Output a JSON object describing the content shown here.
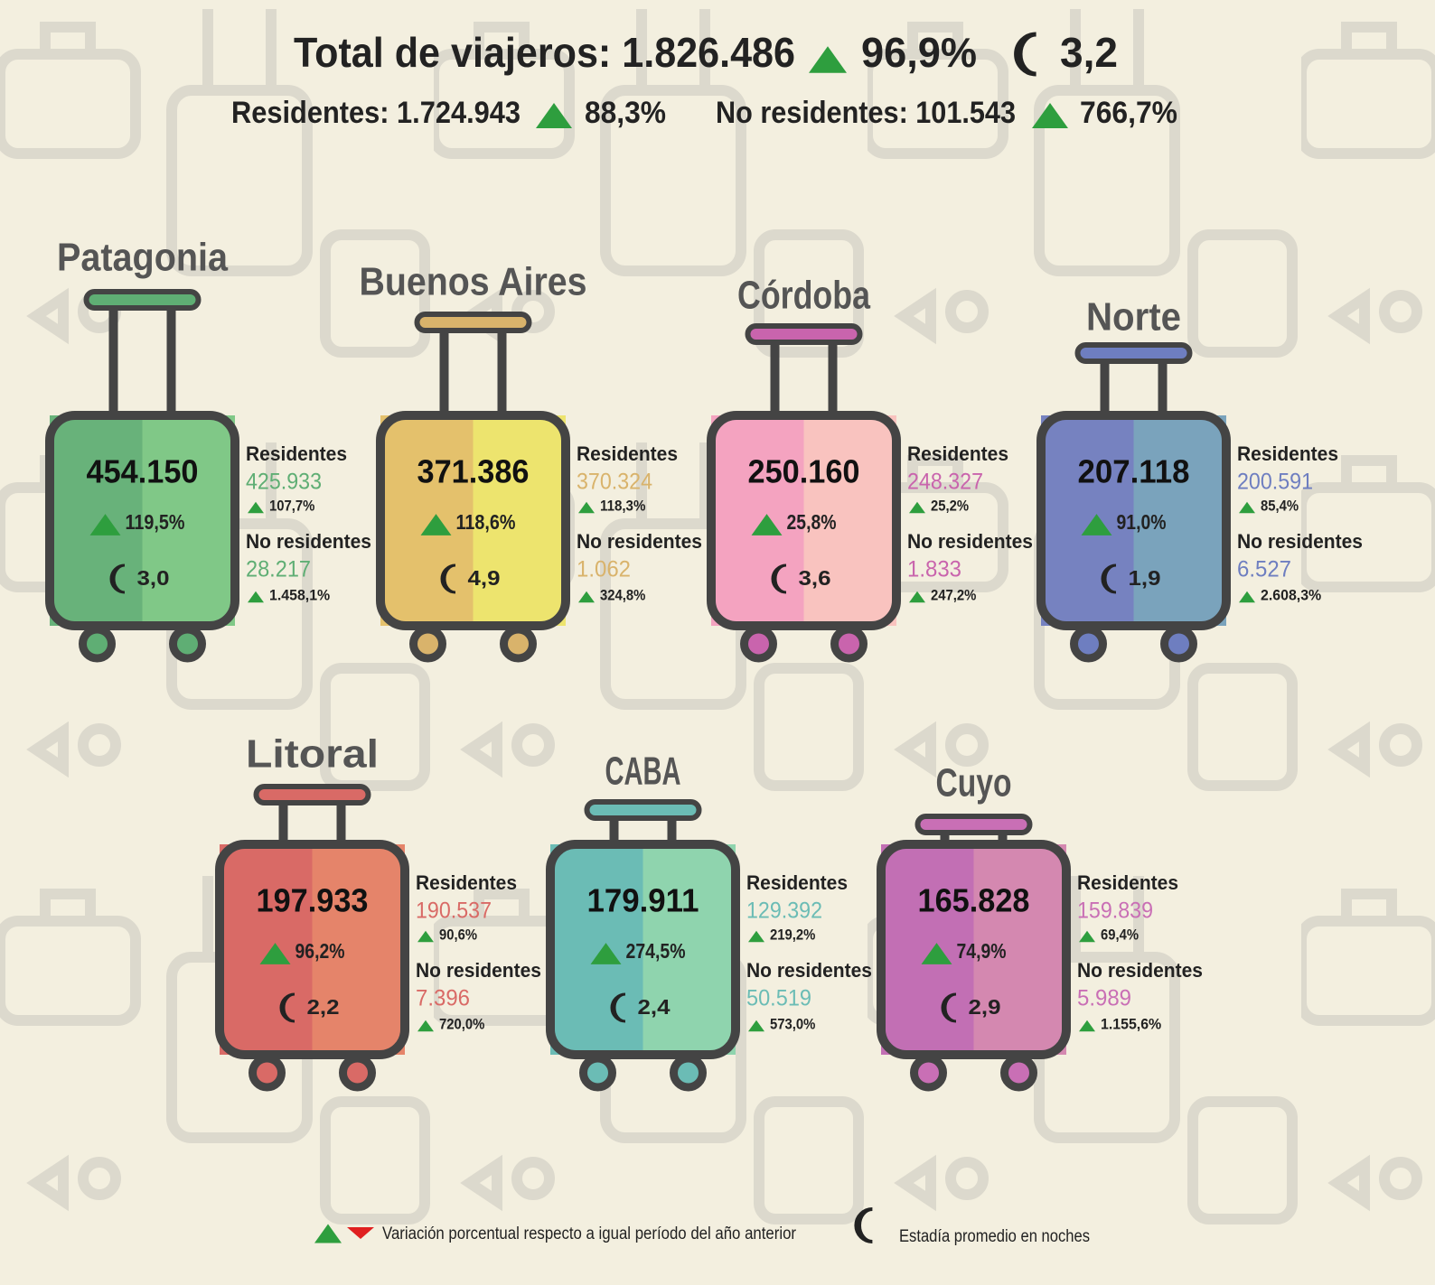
{
  "header": {
    "title": "Total de viajeros: 1.826.486",
    "total_change": "96,9%",
    "total_nights": "3,2",
    "residents": "Residentes: 1.724.943",
    "residents_change": "88,3%",
    "nonresidents": "No residentes: 101.543",
    "nonresidents_change": "766,7%"
  },
  "labels": {
    "residents": "Residentes",
    "nonresidents": "No residentes"
  },
  "regions": [
    {
      "name": "Patagonia",
      "total": "454.150",
      "total_change": "119,5%",
      "nights": "3,0",
      "residents": "425.933",
      "residents_change": "107,7%",
      "nonresidents": "28.217",
      "nonresidents_change": "1.458,1%",
      "colors": {
        "left": "#68b27a",
        "right": "#80c887",
        "accent": "#5fae74"
      }
    },
    {
      "name": "Buenos Aires",
      "total": "371.386",
      "total_change": "118,6%",
      "nights": "4,9",
      "residents": "370.324",
      "residents_change": "118,3%",
      "nonresidents": "1.062",
      "nonresidents_change": "324,8%",
      "colors": {
        "left": "#e4c16c",
        "right": "#ede46e",
        "accent": "#d9b36b"
      }
    },
    {
      "name": "Córdoba",
      "total": "250.160",
      "total_change": "25,8%",
      "nights": "3,6",
      "residents": "248.327",
      "residents_change": "25,2%",
      "nonresidents": "1.833",
      "nonresidents_change": "247,2%",
      "colors": {
        "left": "#f4a3c0",
        "right": "#f9c3bf",
        "accent": "#c964ad"
      }
    },
    {
      "name": "Norte",
      "total": "207.118",
      "total_change": "91,0%",
      "nights": "1,9",
      "residents": "200.591",
      "residents_change": "85,4%",
      "nonresidents": "6.527",
      "nonresidents_change": "2.608,3%",
      "colors": {
        "left": "#7682c0",
        "right": "#7aa3bc",
        "accent": "#6e7ec0"
      }
    },
    {
      "name": "Litoral",
      "total": "197.933",
      "total_change": "96,2%",
      "nights": "2,2",
      "residents": "190.537",
      "residents_change": "90,6%",
      "nonresidents": "7.396",
      "nonresidents_change": "720,0%",
      "colors": {
        "left": "#d96a66",
        "right": "#e5846a",
        "accent": "#d96a66"
      }
    },
    {
      "name": "CABA",
      "total": "179.911",
      "total_change": "274,5%",
      "nights": "2,4",
      "residents": "129.392",
      "residents_change": "219,2%",
      "nonresidents": "50.519",
      "nonresidents_change": "573,0%",
      "colors": {
        "left": "#6bbcb5",
        "right": "#8fd4ae",
        "accent": "#6bbcb5"
      }
    },
    {
      "name": "Cuyo",
      "total": "165.828",
      "total_change": "74,9%",
      "nights": "2,9",
      "residents": "159.839",
      "residents_change": "69,4%",
      "nonresidents": "5.989",
      "nonresidents_change": "1.155,6%",
      "colors": {
        "left": "#c26fb4",
        "right": "#d488b0",
        "accent": "#c96fb5"
      }
    }
  ],
  "legend": {
    "change_note": "Variación porcentual respecto a igual período del año anterior",
    "nights_note": "Estadía promedio en noches"
  }
}
